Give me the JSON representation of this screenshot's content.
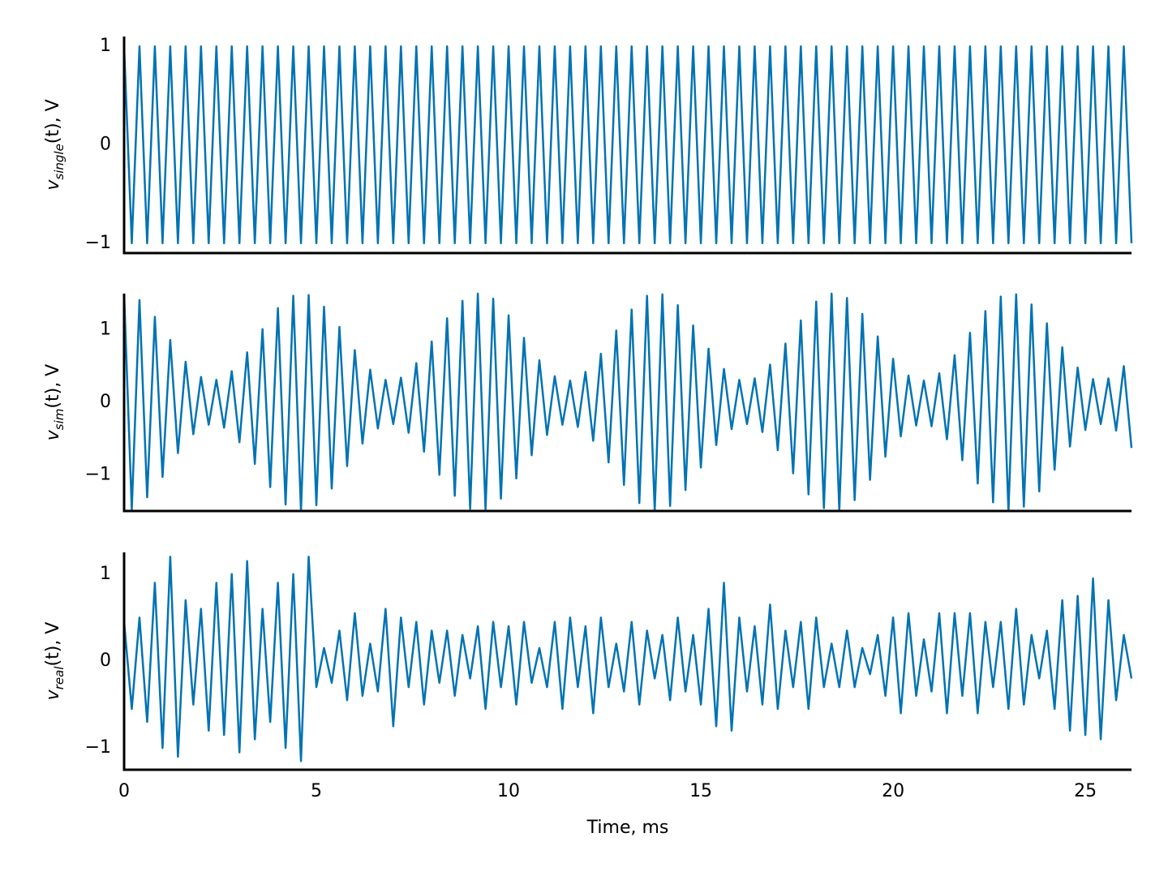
{
  "chart_data": [
    {
      "type": "line",
      "x": [
        0,
        0.2,
        0.4,
        0.6,
        0.8,
        1,
        1.2,
        1.4,
        1.6,
        1.8,
        2,
        2.2,
        2.4,
        2.6,
        2.8,
        3,
        3.2,
        3.4,
        3.6,
        3.8,
        4,
        4.2,
        4.4,
        4.6,
        4.8,
        5,
        5.2,
        5.4,
        5.6,
        5.8,
        6,
        6.2,
        6.4,
        6.6,
        6.8,
        7,
        7.2,
        7.4,
        7.6,
        7.8,
        8,
        8.2,
        8.4,
        8.6,
        8.8,
        9,
        9.2,
        9.4,
        9.6,
        9.8,
        10,
        10.2,
        10.4,
        10.6,
        10.8,
        11,
        11.2,
        11.4,
        11.6,
        11.8,
        12,
        12.2,
        12.4,
        12.6,
        12.8,
        13,
        13.2,
        13.4,
        13.6,
        13.8,
        14,
        14.2,
        14.4,
        14.6,
        14.8,
        15,
        15.2,
        15.4,
        15.6,
        15.8,
        16,
        16.2,
        16.4,
        16.6,
        16.8,
        17,
        17.2,
        17.4,
        17.6,
        17.8,
        18,
        18.2,
        18.4,
        18.6,
        18.8,
        19,
        19.2,
        19.4,
        19.6,
        19.8,
        20,
        20.2,
        20.4,
        20.6,
        20.8,
        21,
        21.2,
        21.4,
        21.6,
        21.8,
        22,
        22.2,
        22.4,
        22.6,
        22.8,
        23,
        23.2,
        23.4,
        23.6,
        23.8,
        24,
        24.2,
        24.4,
        24.6,
        24.8,
        25,
        25.2,
        25.4,
        25.6,
        25.8,
        26,
        26.2
      ],
      "series": [
        {
          "color": "#0173b2",
          "values": [
            1,
            -1,
            1,
            -1,
            1,
            -1,
            1,
            -1,
            1,
            -1,
            1,
            -1,
            1,
            -1,
            1,
            -1,
            1,
            -1,
            1,
            -1,
            1,
            -1,
            1,
            -1,
            1,
            -1,
            1,
            -1,
            1,
            -1,
            1,
            -1,
            1,
            -1,
            1,
            -1,
            1,
            -1,
            1,
            -1,
            1,
            -1,
            1,
            -1,
            1,
            -1,
            1,
            -1,
            1,
            -1,
            1,
            -1,
            1,
            -1,
            1,
            -1,
            1,
            -1,
            1,
            -1,
            1,
            -1,
            1,
            -1,
            1,
            -1,
            1,
            -1,
            1,
            -1,
            1,
            -1,
            1,
            -1,
            1,
            -1,
            1,
            -1,
            1,
            -1,
            1,
            -1,
            1,
            -1,
            1,
            -1,
            1,
            -1,
            1,
            -1,
            1,
            -1,
            1,
            -1,
            1,
            -1,
            1,
            -1,
            1,
            -1,
            1,
            -1,
            1,
            -1,
            1,
            -1,
            1,
            -1,
            1,
            -1,
            1,
            -1,
            1,
            -1,
            1,
            -1,
            1,
            -1,
            1,
            -1,
            1,
            -1,
            1,
            -1,
            1,
            -1,
            1,
            -1,
            1,
            -1,
            1,
            -1
          ]
        }
      ],
      "xlim": [
        0,
        26.2
      ],
      "ylim": [
        -1.1,
        1.1
      ],
      "yticks": [
        {
          "value": -1,
          "label": "−1"
        },
        0,
        1
      ],
      "ylabel": {
        "var": "v",
        "sub": "single",
        "rest": "(t), V"
      }
    },
    {
      "type": "line",
      "x": [
        0,
        0.2,
        0.4,
        0.6,
        0.8,
        1,
        1.2,
        1.4,
        1.6,
        1.8,
        2,
        2.2,
        2.4,
        2.6,
        2.8,
        3,
        3.2,
        3.4,
        3.6,
        3.8,
        4,
        4.2,
        4.4,
        4.6,
        4.8,
        5,
        5.2,
        5.4,
        5.6,
        5.8,
        6,
        6.2,
        6.4,
        6.6,
        6.8,
        7,
        7.2,
        7.4,
        7.6,
        7.8,
        8,
        8.2,
        8.4,
        8.6,
        8.8,
        9,
        9.2,
        9.4,
        9.6,
        9.8,
        10,
        10.2,
        10.4,
        10.6,
        10.8,
        11,
        11.2,
        11.4,
        11.6,
        11.8,
        12,
        12.2,
        12.4,
        12.6,
        12.8,
        13,
        13.2,
        13.4,
        13.6,
        13.8,
        14,
        14.2,
        14.4,
        14.6,
        14.8,
        15,
        15.2,
        15.4,
        15.6,
        15.8,
        16,
        16.2,
        16.4,
        16.6,
        16.8,
        17,
        17.2,
        17.4,
        17.6,
        17.8,
        18,
        18.2,
        18.4,
        18.6,
        18.8,
        19,
        19.2,
        19.4,
        19.6,
        19.8,
        20,
        20.2,
        20.4,
        20.6,
        20.8,
        21,
        21.2,
        21.4,
        21.6,
        21.8,
        22,
        22.2,
        22.4,
        22.6,
        22.8,
        23,
        23.2,
        23.4,
        23.6,
        23.8,
        24,
        24.2,
        24.4,
        24.6,
        24.8,
        25,
        25.2,
        25.4,
        25.6,
        25.8,
        26,
        26.2
      ],
      "series": [
        {
          "color": "#0173b2",
          "values": [
            1.5,
            -1.48,
            1.41,
            -1.31,
            1.18,
            -1.03,
            0.86,
            -0.7,
            0.56,
            -0.44,
            0.35,
            -0.31,
            0.31,
            -0.35,
            0.43,
            -0.55,
            0.69,
            -0.85,
            1.01,
            -1.17,
            1.3,
            -1.41,
            1.47,
            -1.5,
            1.48,
            -1.42,
            1.32,
            -1.19,
            1.04,
            -0.88,
            0.72,
            -0.57,
            0.45,
            -0.36,
            0.31,
            -0.3,
            0.34,
            -0.42,
            0.54,
            -0.68,
            0.84,
            -1,
            1.16,
            -1.29,
            1.4,
            -1.47,
            1.5,
            -1.48,
            1.43,
            -1.33,
            1.2,
            -1.05,
            0.89,
            -0.73,
            0.58,
            -0.45,
            0.36,
            -0.31,
            0.3,
            -0.34,
            0.42,
            -0.53,
            0.67,
            -0.83,
            0.99,
            -1.14,
            1.28,
            -1.39,
            1.47,
            -1.5,
            1.49,
            -1.43,
            1.34,
            -1.21,
            1.06,
            -0.9,
            0.74,
            -0.59,
            0.46,
            -0.37,
            0.31,
            -0.3,
            0.33,
            -0.41,
            0.52,
            -0.66,
            0.81,
            -0.98,
            1.13,
            -1.27,
            1.39,
            -1.46,
            1.5,
            -1.49,
            1.44,
            -1.35,
            1.22,
            -1.07,
            0.91,
            -0.75,
            0.6,
            -0.47,
            0.37,
            -0.32,
            0.3,
            -0.33,
            0.4,
            -0.51,
            0.65,
            -0.8,
            0.96,
            -1.12,
            1.26,
            -1.38,
            1.46,
            -1.5,
            1.49,
            -1.44,
            1.35,
            -1.23,
            1.09,
            -0.93,
            0.76,
            -0.61,
            0.48,
            -0.38,
            0.32,
            -0.3,
            0.33,
            -0.39,
            0.5,
            -0.63
          ]
        }
      ],
      "xlim": [
        0,
        26.2
      ],
      "ylim": [
        -1.5,
        1.5
      ],
      "yticks": [
        {
          "value": -1,
          "label": "−1"
        },
        0,
        1
      ],
      "ylabel": {
        "var": "v",
        "sub": "sim",
        "rest": "(t), V"
      }
    },
    {
      "type": "line",
      "x": [
        0,
        0.2,
        0.4,
        0.6,
        0.8,
        1,
        1.2,
        1.4,
        1.6,
        1.8,
        2,
        2.2,
        2.4,
        2.6,
        2.8,
        3,
        3.2,
        3.4,
        3.6,
        3.8,
        4,
        4.2,
        4.4,
        4.6,
        4.8,
        5,
        5.2,
        5.4,
        5.6,
        5.8,
        6,
        6.2,
        6.4,
        6.6,
        6.8,
        7,
        7.2,
        7.4,
        7.6,
        7.8,
        8,
        8.2,
        8.4,
        8.6,
        8.8,
        9,
        9.2,
        9.4,
        9.6,
        9.8,
        10,
        10.2,
        10.4,
        10.6,
        10.8,
        11,
        11.2,
        11.4,
        11.6,
        11.8,
        12,
        12.2,
        12.4,
        12.6,
        12.8,
        13,
        13.2,
        13.4,
        13.6,
        13.8,
        14,
        14.2,
        14.4,
        14.6,
        14.8,
        15,
        15.2,
        15.4,
        15.6,
        15.8,
        16,
        16.2,
        16.4,
        16.6,
        16.8,
        17,
        17.2,
        17.4,
        17.6,
        17.8,
        18,
        18.2,
        18.4,
        18.6,
        18.8,
        19,
        19.2,
        19.4,
        19.6,
        19.8,
        20,
        20.2,
        20.4,
        20.6,
        20.8,
        21,
        21.2,
        21.4,
        21.6,
        21.8,
        22,
        22.2,
        22.4,
        22.6,
        22.8,
        23,
        23.2,
        23.4,
        23.6,
        23.8,
        24,
        24.2,
        24.4,
        24.6,
        24.8,
        25,
        25.2,
        25.4,
        25.6,
        25.8,
        26,
        26.2
      ],
      "series": [
        {
          "color": "#0173b2",
          "values": [
            0.45,
            -0.55,
            0.5,
            -0.7,
            0.9,
            -1,
            1.2,
            -1.1,
            0.7,
            -0.5,
            0.6,
            -0.8,
            0.9,
            -0.85,
            1,
            -1.05,
            1.15,
            -0.9,
            0.6,
            -0.7,
            0.9,
            -1,
            1,
            -1.15,
            1.2,
            -0.3,
            0.15,
            -0.25,
            0.35,
            -0.45,
            0.55,
            -0.4,
            0.2,
            -0.35,
            0.6,
            -0.75,
            0.5,
            -0.3,
            0.45,
            -0.5,
            0.35,
            -0.25,
            0.35,
            -0.4,
            0.3,
            -0.2,
            0.4,
            -0.55,
            0.45,
            -0.3,
            0.4,
            -0.5,
            0.45,
            -0.25,
            0.15,
            -0.3,
            0.45,
            -0.55,
            0.5,
            -0.3,
            0.4,
            -0.6,
            0.5,
            -0.3,
            0.2,
            -0.35,
            0.45,
            -0.5,
            0.35,
            -0.2,
            0.3,
            -0.45,
            0.5,
            -0.35,
            0.3,
            -0.5,
            0.6,
            -0.75,
            0.9,
            -0.8,
            0.5,
            -0.35,
            0.4,
            -0.5,
            0.65,
            -0.55,
            0.35,
            -0.3,
            0.45,
            -0.55,
            0.5,
            -0.3,
            0.2,
            -0.3,
            0.35,
            -0.3,
            0.15,
            -0.15,
            0.3,
            -0.4,
            0.5,
            -0.6,
            0.55,
            -0.4,
            0.25,
            -0.35,
            0.55,
            -0.6,
            0.55,
            -0.4,
            0.55,
            -0.6,
            0.45,
            -0.3,
            0.45,
            -0.55,
            0.6,
            -0.5,
            0.3,
            -0.2,
            0.35,
            -0.55,
            0.7,
            -0.8,
            0.75,
            -0.85,
            0.95,
            -0.9,
            0.7,
            -0.45,
            0.3,
            -0.2
          ]
        }
      ],
      "xlim": [
        0,
        26.2
      ],
      "xticks": [
        0,
        5,
        10,
        15,
        20,
        25
      ],
      "xlabel": "Time, ms",
      "ylim": [
        -1.25,
        1.25
      ],
      "yticks": [
        {
          "value": -1,
          "label": "−1"
        },
        0,
        1
      ],
      "ylabel": {
        "var": "v",
        "sub": "real",
        "rest": "(t), V"
      }
    }
  ]
}
